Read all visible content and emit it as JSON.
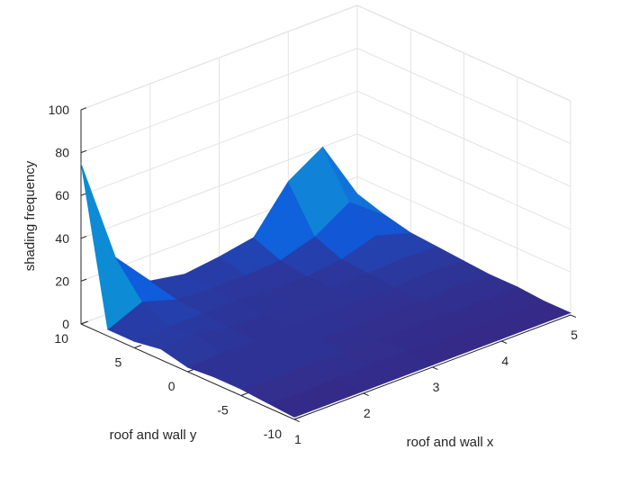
{
  "chart_data": {
    "type": "surface",
    "xlabel": "roof and wall x",
    "ylabel": "roof and wall y",
    "zlabel": "shading frequency",
    "xlim": [
      1,
      5
    ],
    "ylim": [
      -10,
      10
    ],
    "zlim": [
      0,
      100
    ],
    "x_ticks": [
      "1",
      "2",
      "3",
      "4",
      "5"
    ],
    "y_ticks": [
      "-10",
      "-5",
      "0",
      "5",
      "10"
    ],
    "z_ticks": [
      "0",
      "20",
      "40",
      "60",
      "80",
      "100"
    ],
    "grid": true,
    "colormap": "parula",
    "x": [
      1,
      1.5,
      2,
      2.5,
      3,
      3.5,
      4,
      4.5,
      5
    ],
    "y": [
      -10,
      -7.5,
      -5,
      -2.5,
      0,
      2.5,
      5,
      7.5,
      10
    ],
    "z": [
      [
        1,
        2,
        3,
        3,
        2,
        5,
        3,
        3,
        75
      ],
      [
        1,
        1,
        2,
        3,
        3,
        6,
        4,
        10,
        25
      ],
      [
        1,
        2,
        3,
        3,
        2,
        3,
        4,
        5,
        8
      ],
      [
        1,
        2,
        2,
        3,
        3,
        3,
        4,
        4,
        5
      ],
      [
        1,
        2,
        2,
        2,
        3,
        3,
        3,
        4,
        7
      ],
      [
        1,
        1,
        2,
        2,
        3,
        3,
        3,
        5,
        10
      ],
      [
        1,
        1,
        2,
        2,
        3,
        4,
        5,
        10,
        30
      ],
      [
        1,
        1,
        2,
        3,
        4,
        5,
        10,
        20,
        40
      ],
      [
        1,
        1,
        2,
        2,
        3,
        4,
        5,
        8,
        12
      ]
    ]
  }
}
